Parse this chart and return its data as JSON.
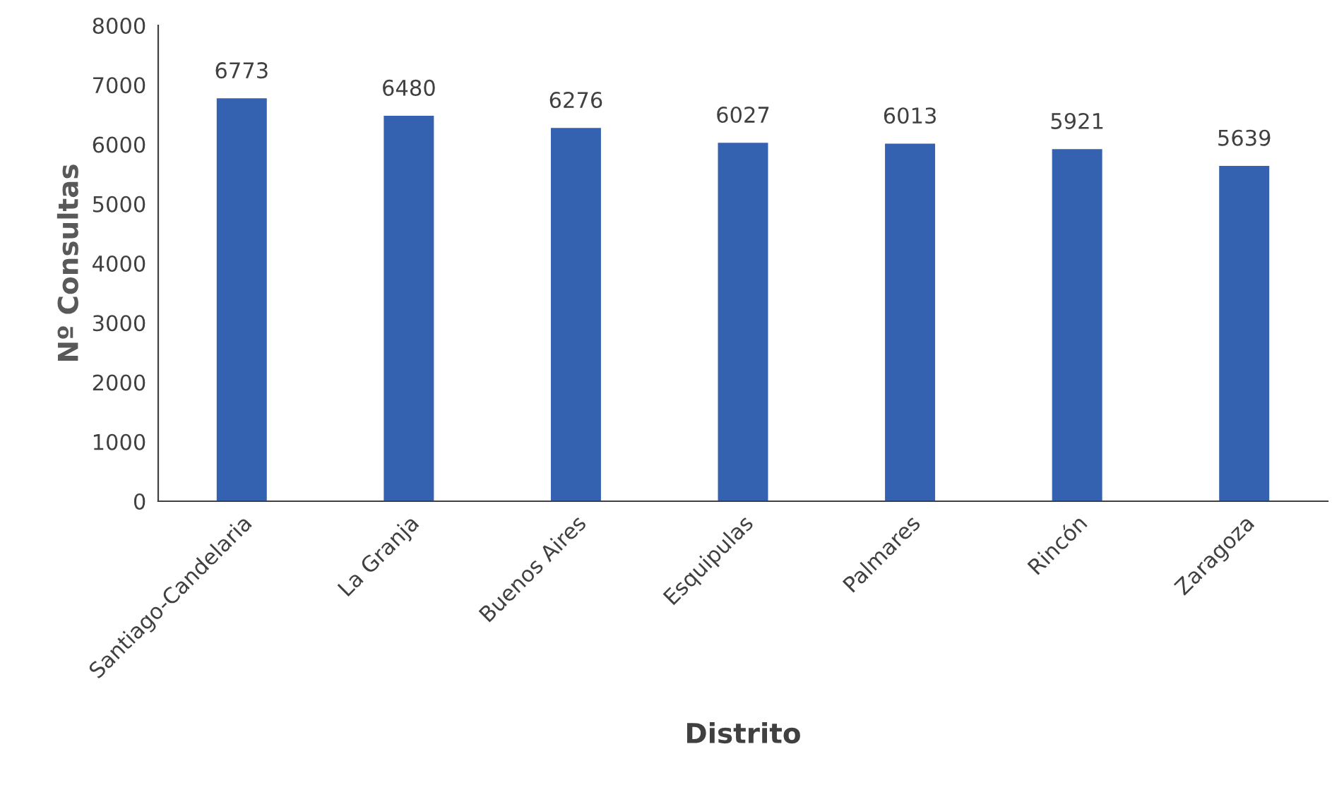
{
  "chart_data": {
    "type": "bar",
    "xlabel": "Distrito",
    "ylabel": "Nº Consultas",
    "categories": [
      "Santiago-Candelaria",
      "La Granja",
      "Buenos Aires",
      "Esquipulas",
      "Palmares",
      "Rincón",
      "Zaragoza"
    ],
    "values": [
      6773,
      6480,
      6276,
      6027,
      6013,
      5921,
      5639
    ],
    "color": "#3461b0",
    "ylim": [
      0,
      8000
    ],
    "yticks": [
      0,
      1000,
      2000,
      3000,
      4000,
      5000,
      6000,
      7000,
      8000
    ],
    "data_labels": true,
    "grid": false,
    "legend": false
  }
}
